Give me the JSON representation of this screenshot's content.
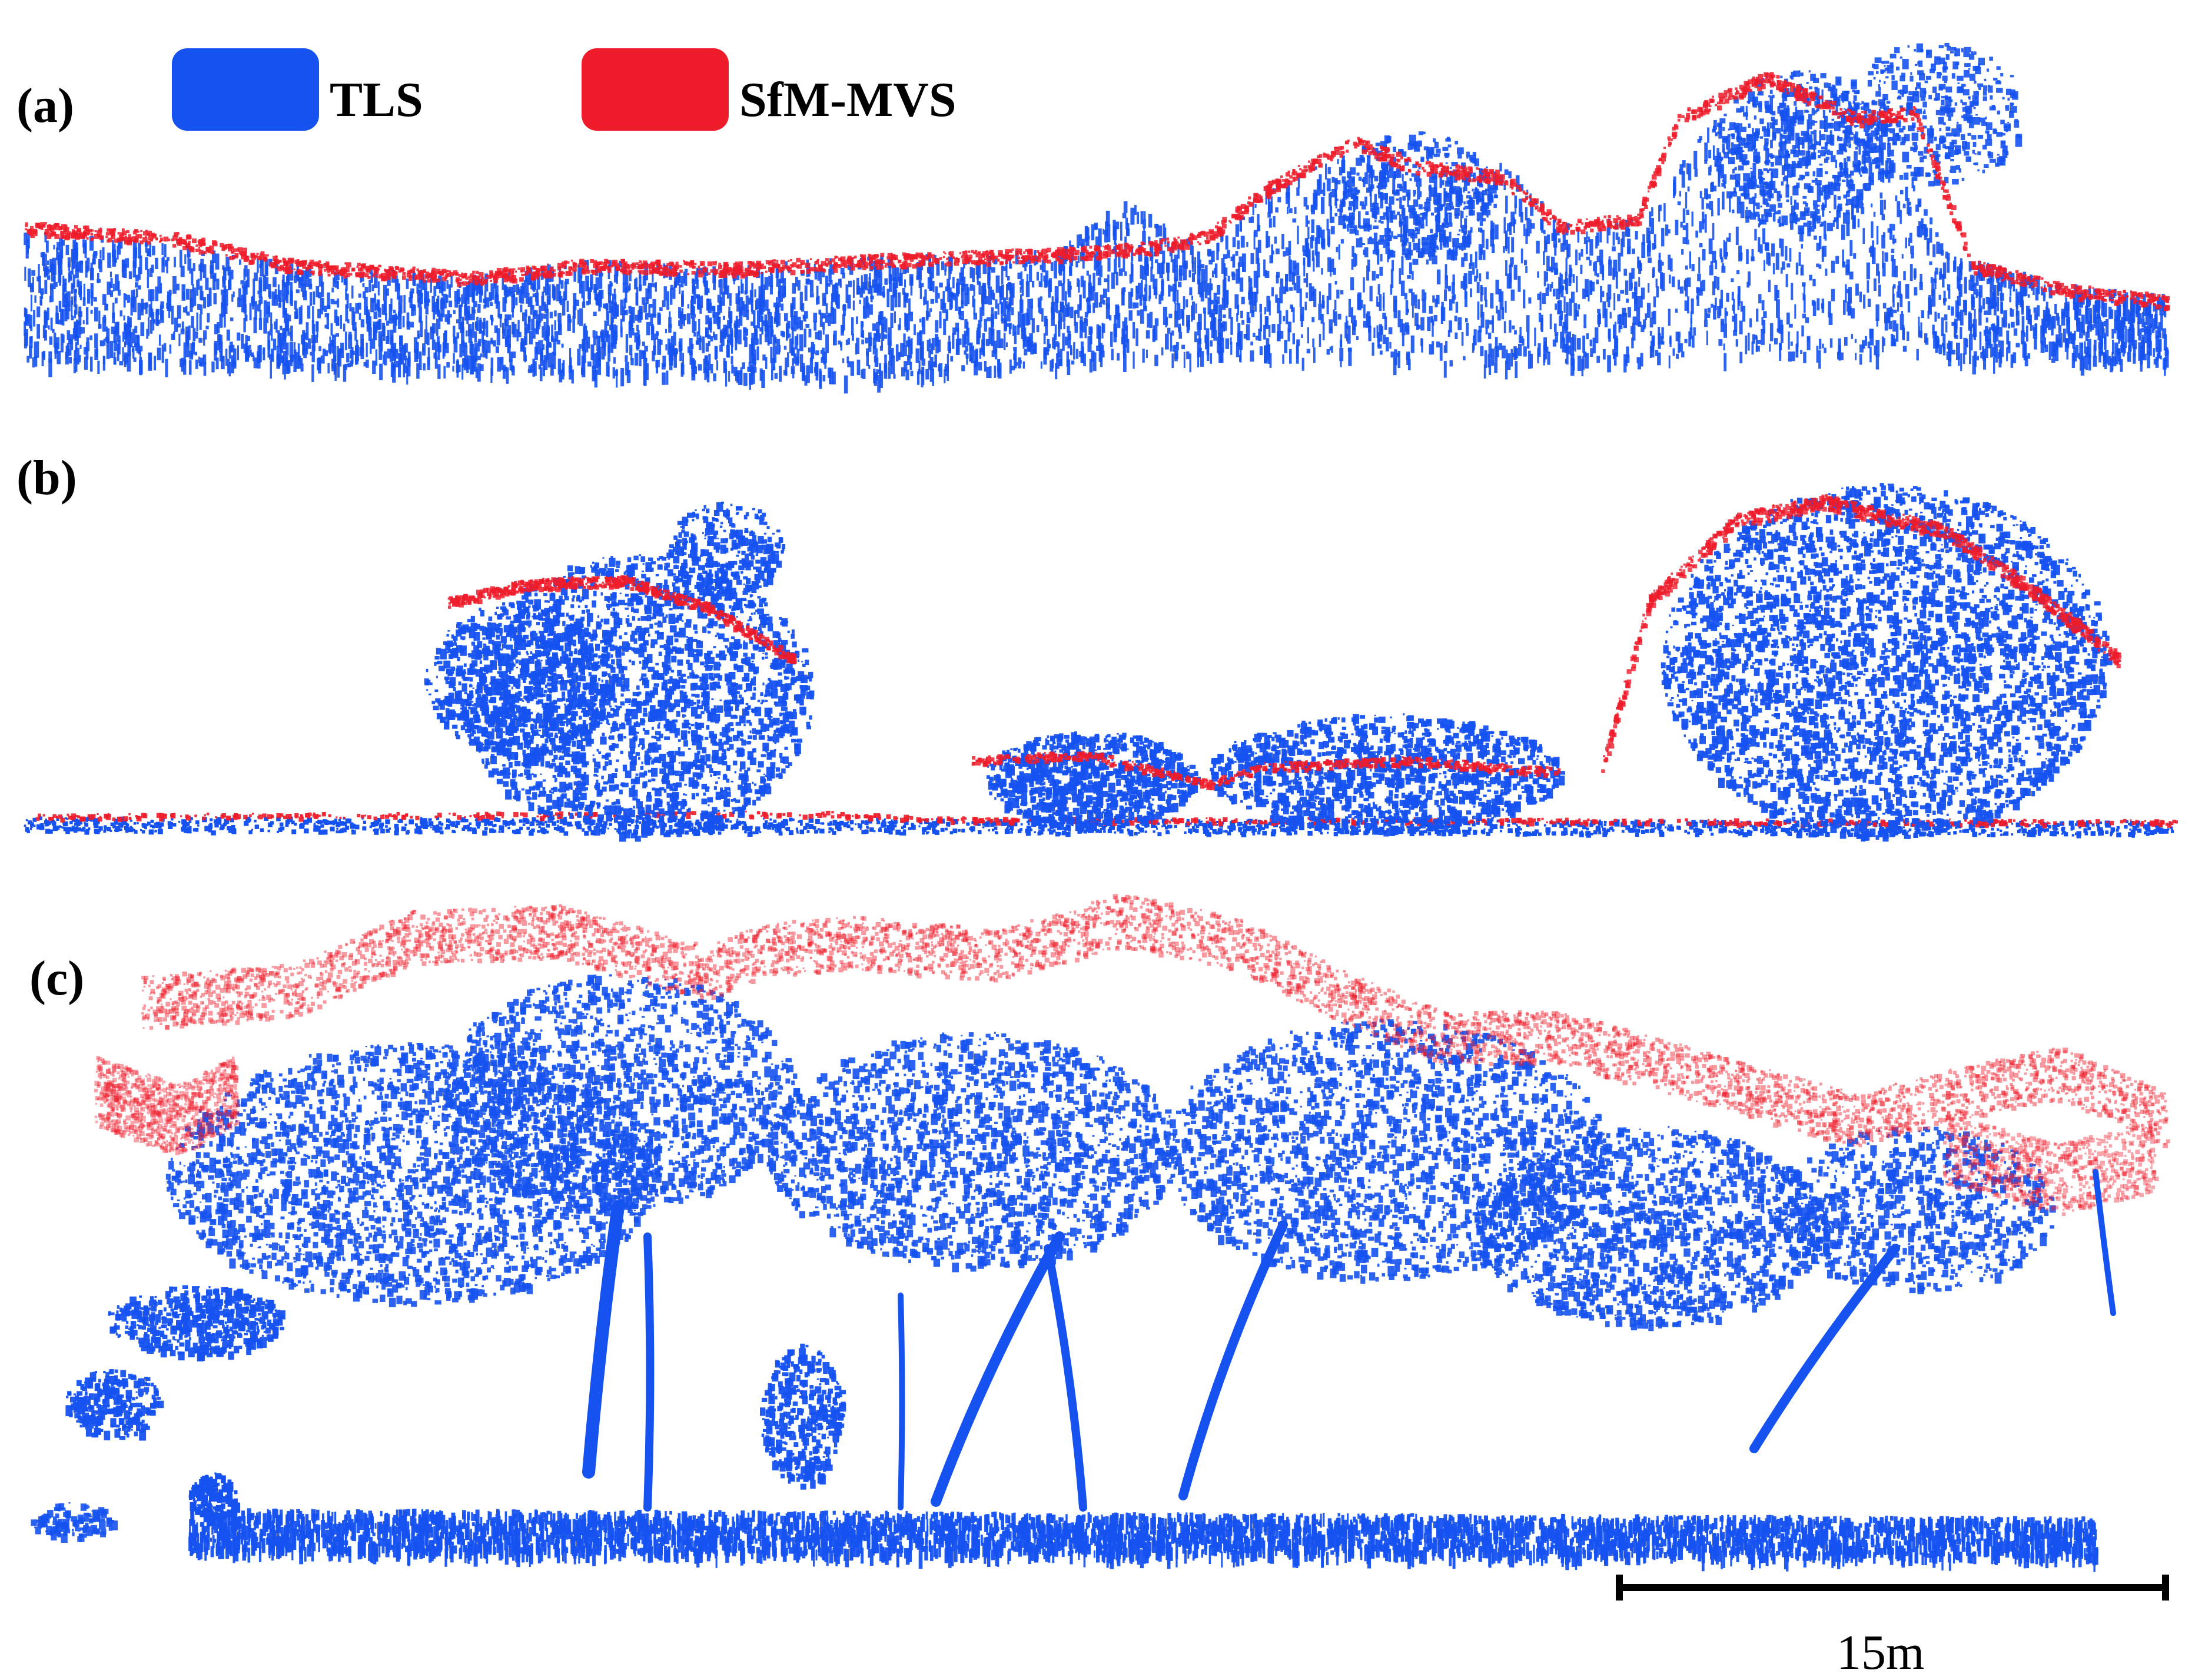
{
  "panels": [
    {
      "label": "(a)"
    },
    {
      "label": "(b)"
    },
    {
      "label": "(c)"
    }
  ],
  "legend": {
    "items": [
      {
        "label": "TLS",
        "color": "#1652f0"
      },
      {
        "label": "SfM-MVS",
        "color": "#ee1c2a"
      }
    ]
  },
  "scale_bar": {
    "label": "15m"
  }
}
